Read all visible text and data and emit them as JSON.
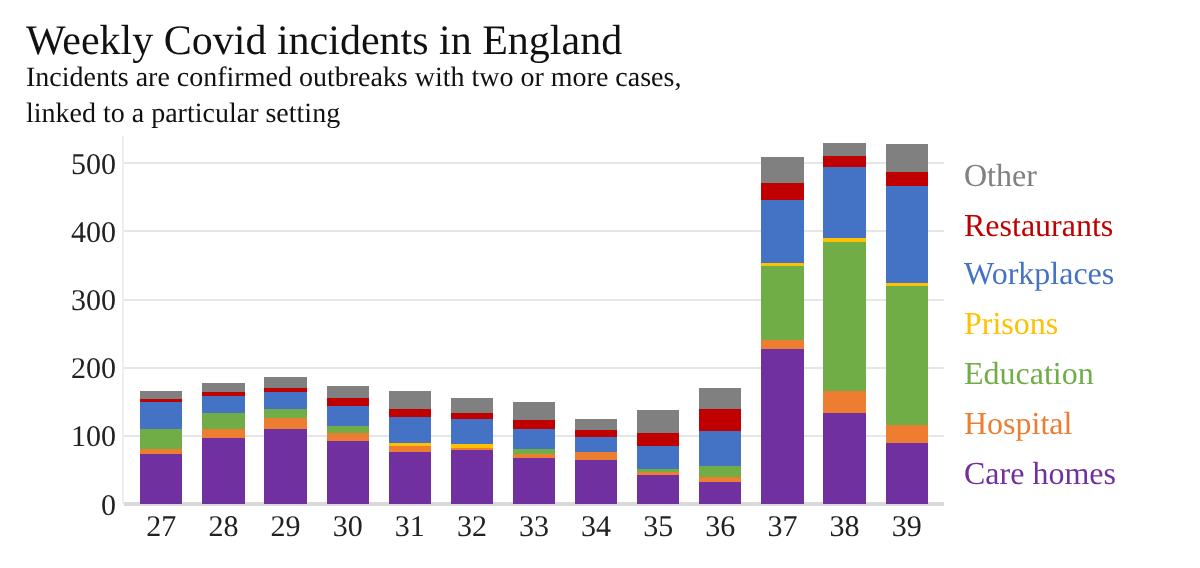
{
  "chart_data": {
    "type": "bar",
    "stacked": true,
    "title": "Weekly Covid incidents in England",
    "subtitle": "Incidents are confirmed outbreaks with two or more cases,\nlinked to a particular setting",
    "categories": [
      "27",
      "28",
      "29",
      "30",
      "31",
      "32",
      "33",
      "34",
      "35",
      "36",
      "37",
      "38",
      "39"
    ],
    "series": [
      {
        "name": "Care homes",
        "color": "#7030a0",
        "values": [
          73,
          97,
          110,
          92,
          77,
          79,
          67,
          65,
          43,
          34,
          228,
          134,
          90
        ]
      },
      {
        "name": "Hospital",
        "color": "#ed7d31",
        "values": [
          7,
          13,
          16,
          12,
          9,
          6,
          9,
          12,
          6,
          5,
          12,
          32,
          26
        ]
      },
      {
        "name": "Education",
        "color": "#70ad47",
        "values": [
          30,
          24,
          13,
          11,
          0,
          0,
          4,
          0,
          3,
          17,
          110,
          220,
          204
        ]
      },
      {
        "name": "Prisons",
        "color": "#ffc000",
        "values": [
          0,
          0,
          0,
          0,
          3,
          3,
          0,
          0,
          0,
          0,
          3,
          4,
          5
        ]
      },
      {
        "name": "Workplaces",
        "color": "#4472c4",
        "values": [
          40,
          27,
          27,
          29,
          38,
          37,
          30,
          22,
          33,
          51,
          93,
          104,
          142
        ]
      },
      {
        "name": "Restaurants",
        "color": "#c00000",
        "values": [
          4,
          3,
          4,
          12,
          13,
          9,
          13,
          9,
          19,
          33,
          25,
          16,
          20
        ]
      },
      {
        "name": "Other",
        "color": "#808080",
        "values": [
          12,
          13,
          16,
          17,
          26,
          22,
          26,
          17,
          34,
          30,
          38,
          20,
          41
        ]
      }
    ],
    "ylim": [
      0,
      540
    ],
    "yticks": [
      0,
      100,
      200,
      300,
      400,
      500
    ],
    "grid": "y",
    "legend": false
  }
}
